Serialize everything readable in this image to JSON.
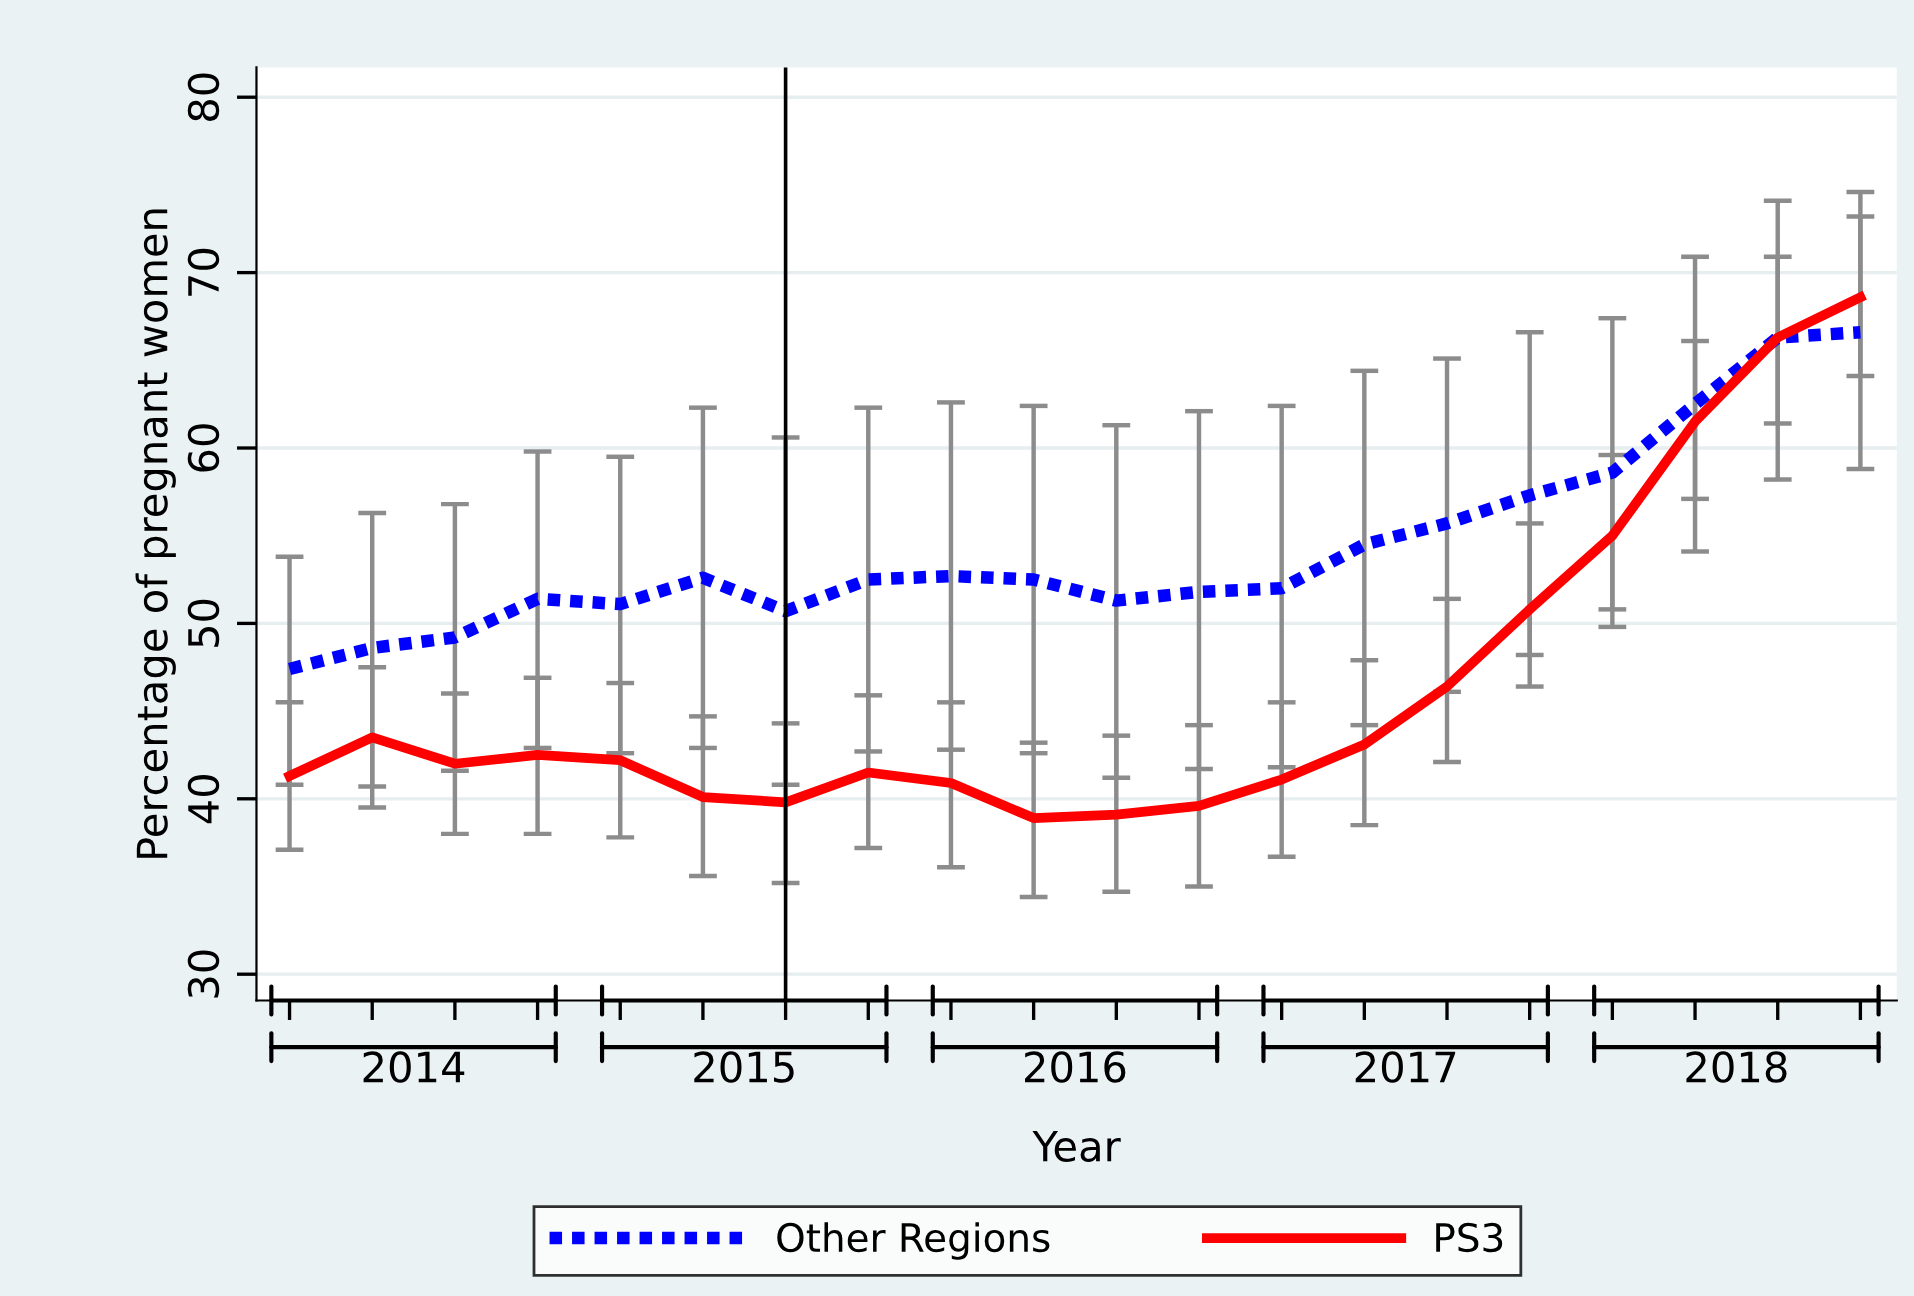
{
  "chart_data": {
    "type": "line",
    "xlabel": "Year",
    "ylabel": "Percentage of pregnant women",
    "x": [
      2014.0,
      2014.25,
      2014.5,
      2014.75,
      2015.0,
      2015.25,
      2015.5,
      2015.75,
      2016.0,
      2016.25,
      2016.5,
      2016.75,
      2017.0,
      2017.25,
      2017.5,
      2017.75,
      2018.0,
      2018.25,
      2018.5,
      2018.75
    ],
    "series": [
      {
        "name": "Other Regions",
        "color": "#0000ff",
        "line_style": "dotted",
        "values": [
          47.4,
          48.6,
          49.2,
          51.4,
          51.1,
          52.6,
          50.7,
          52.5,
          52.7,
          52.5,
          51.3,
          51.8,
          52.0,
          54.5,
          55.7,
          57.3,
          58.6,
          62.5,
          66.3,
          66.6
        ],
        "errors": [
          [
            40.8,
            53.8
          ],
          [
            40.7,
            56.3
          ],
          [
            41.6,
            56.8
          ],
          [
            42.9,
            59.8
          ],
          [
            42.6,
            59.5
          ],
          [
            42.9,
            62.3
          ],
          [
            40.8,
            60.6
          ],
          [
            42.7,
            62.3
          ],
          [
            42.8,
            62.6
          ],
          [
            42.6,
            62.4
          ],
          [
            41.2,
            61.3
          ],
          [
            41.7,
            62.1
          ],
          [
            41.8,
            62.4
          ],
          [
            44.2,
            64.4
          ],
          [
            46.1,
            65.1
          ],
          [
            48.2,
            66.6
          ],
          [
            49.8,
            67.4
          ],
          [
            54.1,
            70.9
          ],
          [
            58.2,
            74.1
          ],
          [
            58.8,
            74.6
          ]
        ]
      },
      {
        "name": "PS3",
        "color": "#ff0000",
        "line_style": "solid",
        "values": [
          41.3,
          43.5,
          42.0,
          42.5,
          42.2,
          40.1,
          39.8,
          41.5,
          40.9,
          38.9,
          39.1,
          39.6,
          41.1,
          43.1,
          46.4,
          50.8,
          55.0,
          61.5,
          66.3,
          68.6
        ],
        "errors": [
          [
            37.1,
            45.5
          ],
          [
            39.5,
            47.5
          ],
          [
            38.0,
            46.0
          ],
          [
            38.0,
            46.9
          ],
          [
            37.8,
            46.6
          ],
          [
            35.6,
            44.7
          ],
          [
            35.2,
            44.3
          ],
          [
            37.2,
            45.9
          ],
          [
            36.1,
            45.5
          ],
          [
            34.4,
            43.2
          ],
          [
            34.7,
            43.6
          ],
          [
            35.0,
            44.2
          ],
          [
            36.7,
            45.5
          ],
          [
            38.5,
            47.9
          ],
          [
            42.1,
            51.4
          ],
          [
            46.4,
            55.7
          ],
          [
            50.8,
            59.6
          ],
          [
            57.1,
            66.1
          ],
          [
            61.4,
            70.9
          ],
          [
            64.1,
            73.2
          ]
        ]
      }
    ],
    "xlim": [
      2013.9,
      2018.86
    ],
    "xticks": [
      {
        "value": 2014.0,
        "label": null
      },
      {
        "value": 2014.25,
        "label": null
      },
      {
        "value": 2014.5,
        "label": null
      },
      {
        "value": 2014.75,
        "label": null
      },
      {
        "value": 2015.0,
        "label": null
      },
      {
        "value": 2015.25,
        "label": null
      },
      {
        "value": 2015.5,
        "label": null
      },
      {
        "value": 2015.75,
        "label": null
      },
      {
        "value": 2016.0,
        "label": null
      },
      {
        "value": 2016.25,
        "label": null
      },
      {
        "value": 2016.5,
        "label": null
      },
      {
        "value": 2016.75,
        "label": null
      },
      {
        "value": 2017.0,
        "label": null
      },
      {
        "value": 2017.25,
        "label": null
      },
      {
        "value": 2017.5,
        "label": null
      },
      {
        "value": 2017.75,
        "label": null
      },
      {
        "value": 2018.0,
        "label": null
      },
      {
        "value": 2018.25,
        "label": null
      },
      {
        "value": 2018.5,
        "label": null
      },
      {
        "value": 2018.75,
        "label": null
      },
      {
        "value": 2014.375,
        "label": "2014"
      },
      {
        "value": 2015.375,
        "label": "2015"
      },
      {
        "value": 2016.375,
        "label": "2016"
      },
      {
        "value": 2017.375,
        "label": "2017"
      },
      {
        "value": 2018.375,
        "label": "2018"
      }
    ],
    "ylim": [
      28.5,
      81.7
    ],
    "yticks": [
      30,
      40,
      50,
      60,
      70,
      80
    ],
    "ref_lines": [
      {
        "axis": "x",
        "value": 2015.5,
        "color": "#000000"
      }
    ],
    "grid": "y",
    "legend": "bottom"
  }
}
